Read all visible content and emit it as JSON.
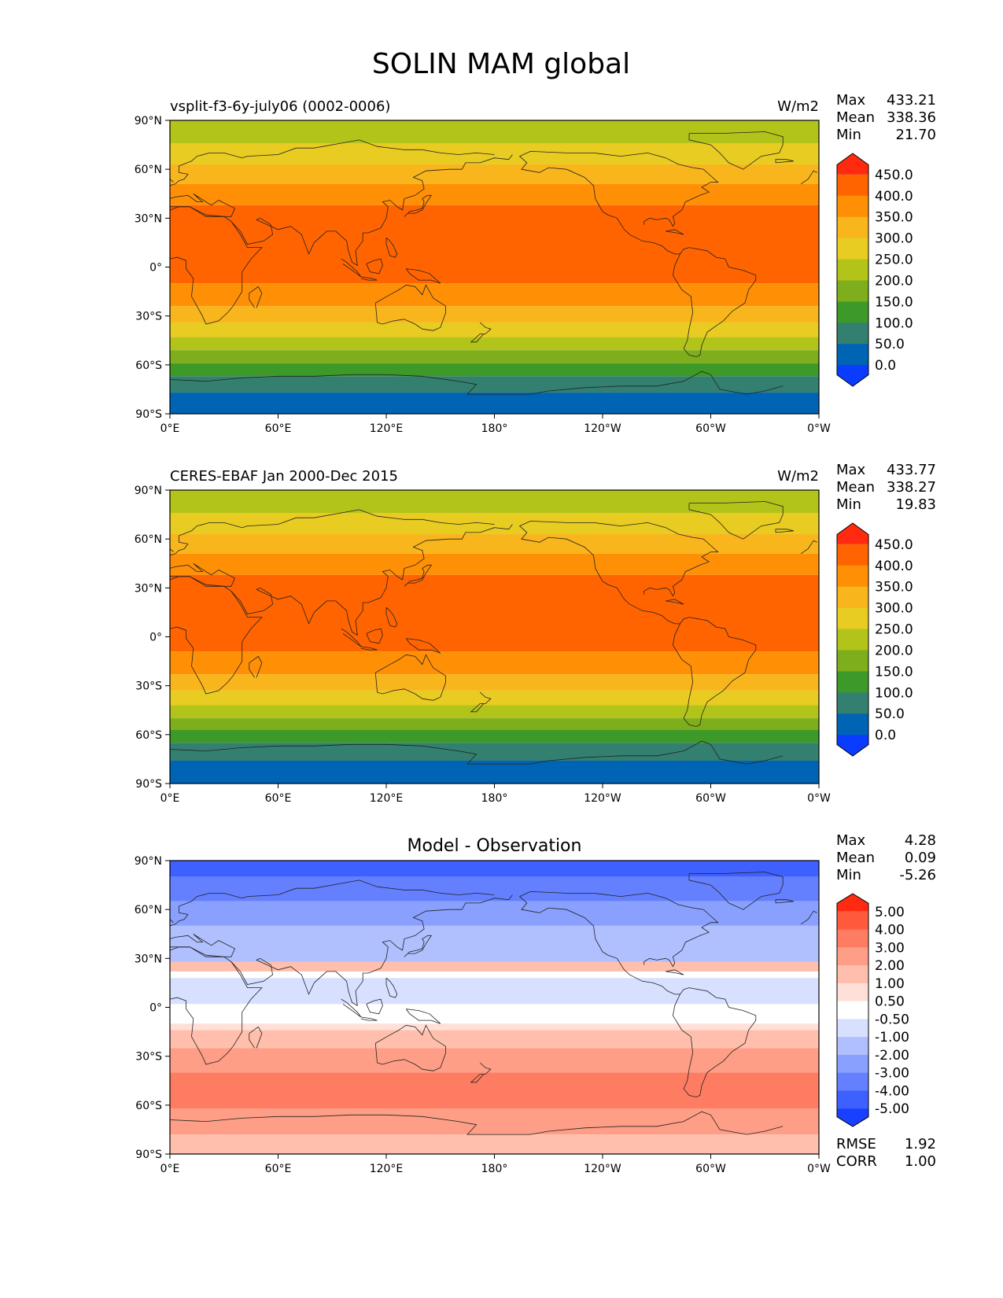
{
  "figure": {
    "title": "SOLIN MAM global"
  },
  "axes": {
    "lat_ticks": [
      "90°N",
      "60°N",
      "30°N",
      "0°",
      "30°S",
      "60°S",
      "90°S"
    ],
    "lon_ticks": [
      "0°E",
      "60°E",
      "120°E",
      "180°",
      "120°W",
      "60°W",
      "0°W"
    ]
  },
  "panels": [
    {
      "id": "model",
      "left_title": "vsplit-f3-6y-july06 (0002-0006)",
      "center_title": "",
      "units": "W/m2",
      "stats": [
        {
          "label": "Max",
          "value": "433.21"
        },
        {
          "label": "Mean",
          "value": "338.36"
        },
        {
          "label": "Min",
          "value": "21.70"
        }
      ],
      "extra_stats": [],
      "colorbar": {
        "labels": [
          "450.0",
          "400.0",
          "350.0",
          "300.0",
          "250.0",
          "200.0",
          "150.0",
          "100.0",
          "50.0",
          "0.0"
        ],
        "colors_top_to_bottom": [
          "#ff2a10",
          "#ff6400",
          "#ff9005",
          "#f9b51c",
          "#e8cc22",
          "#b2c41a",
          "#7eae1c",
          "#3e9a28",
          "#338070",
          "#0064b4",
          "#0a3cff"
        ]
      },
      "field_bands_north_to_south": [
        {
          "lat_top": 90,
          "lat_bottom": 76,
          "color": "#b2c41a"
        },
        {
          "lat_top": 76,
          "lat_bottom": 63,
          "color": "#e8cc22"
        },
        {
          "lat_top": 63,
          "lat_bottom": 51,
          "color": "#f9b51c"
        },
        {
          "lat_top": 51,
          "lat_bottom": 38,
          "color": "#ff9005"
        },
        {
          "lat_top": 38,
          "lat_bottom": -10,
          "color": "#ff6400"
        },
        {
          "lat_top": -10,
          "lat_bottom": -24,
          "color": "#ff9005"
        },
        {
          "lat_top": -24,
          "lat_bottom": -34,
          "color": "#f9b51c"
        },
        {
          "lat_top": -34,
          "lat_bottom": -43,
          "color": "#e8cc22"
        },
        {
          "lat_top": -43,
          "lat_bottom": -51,
          "color": "#b2c41a"
        },
        {
          "lat_top": -51,
          "lat_bottom": -59,
          "color": "#7eae1c"
        },
        {
          "lat_top": -59,
          "lat_bottom": -67,
          "color": "#3e9a28"
        },
        {
          "lat_top": -67,
          "lat_bottom": -77,
          "color": "#338070"
        },
        {
          "lat_top": -77,
          "lat_bottom": -90,
          "color": "#0064b4"
        }
      ]
    },
    {
      "id": "obs",
      "left_title": "CERES-EBAF Jan 2000-Dec 2015",
      "center_title": "",
      "units": "W/m2",
      "stats": [
        {
          "label": "Max",
          "value": "433.77"
        },
        {
          "label": "Mean",
          "value": "338.27"
        },
        {
          "label": "Min",
          "value": "19.83"
        }
      ],
      "extra_stats": [],
      "colorbar": {
        "labels": [
          "450.0",
          "400.0",
          "350.0",
          "300.0",
          "250.0",
          "200.0",
          "150.0",
          "100.0",
          "50.0",
          "0.0"
        ],
        "colors_top_to_bottom": [
          "#ff2a10",
          "#ff6400",
          "#ff9005",
          "#f9b51c",
          "#e8cc22",
          "#b2c41a",
          "#7eae1c",
          "#3e9a28",
          "#338070",
          "#0064b4",
          "#0a3cff"
        ]
      },
      "field_bands_north_to_south": [
        {
          "lat_top": 90,
          "lat_bottom": 76,
          "color": "#b2c41a"
        },
        {
          "lat_top": 76,
          "lat_bottom": 63,
          "color": "#e8cc22"
        },
        {
          "lat_top": 63,
          "lat_bottom": 51,
          "color": "#f9b51c"
        },
        {
          "lat_top": 51,
          "lat_bottom": 38,
          "color": "#ff9005"
        },
        {
          "lat_top": 38,
          "lat_bottom": -9,
          "color": "#ff6400"
        },
        {
          "lat_top": -9,
          "lat_bottom": -23,
          "color": "#ff9005"
        },
        {
          "lat_top": -23,
          "lat_bottom": -33,
          "color": "#f9b51c"
        },
        {
          "lat_top": -33,
          "lat_bottom": -42,
          "color": "#e8cc22"
        },
        {
          "lat_top": -42,
          "lat_bottom": -50,
          "color": "#b2c41a"
        },
        {
          "lat_top": -50,
          "lat_bottom": -57,
          "color": "#7eae1c"
        },
        {
          "lat_top": -57,
          "lat_bottom": -65,
          "color": "#3e9a28"
        },
        {
          "lat_top": -65,
          "lat_bottom": -76,
          "color": "#338070"
        },
        {
          "lat_top": -76,
          "lat_bottom": -90,
          "color": "#0064b4"
        }
      ]
    },
    {
      "id": "diff",
      "left_title": "",
      "center_title": "Model - Observation",
      "units": "",
      "stats": [
        {
          "label": "Max",
          "value": "4.28"
        },
        {
          "label": "Mean",
          "value": "0.09"
        },
        {
          "label": "Min",
          "value": "-5.26"
        }
      ],
      "extra_stats": [
        {
          "label": "RMSE",
          "value": "1.92"
        },
        {
          "label": "CORR",
          "value": "1.00"
        }
      ],
      "colorbar": {
        "labels": [
          "5.00",
          "4.00",
          "3.00",
          "2.00",
          "1.00",
          "0.50",
          "-0.50",
          "-1.00",
          "-2.00",
          "-3.00",
          "-4.00",
          "-5.00"
        ],
        "colors_top_to_bottom": [
          "#ff2a10",
          "#ff5a3c",
          "#fe7c62",
          "#fe9e86",
          "#ffbfac",
          "#ffe0d8",
          "#ffffff",
          "#d8e0ff",
          "#b0c0ff",
          "#8aa0ff",
          "#6480ff",
          "#3e60ff",
          "#1a40ff"
        ]
      },
      "field_bands_north_to_south": [
        {
          "lat_top": 90,
          "lat_bottom": 80,
          "color": "#3e60ff"
        },
        {
          "lat_top": 80,
          "lat_bottom": 65,
          "color": "#6480ff"
        },
        {
          "lat_top": 65,
          "lat_bottom": 50,
          "color": "#8aa0ff"
        },
        {
          "lat_top": 50,
          "lat_bottom": 28,
          "color": "#b0c0ff"
        },
        {
          "lat_top": 28,
          "lat_bottom": 22,
          "color": "#ffbfac"
        },
        {
          "lat_top": 22,
          "lat_bottom": 18,
          "color": "#ffffff"
        },
        {
          "lat_top": 18,
          "lat_bottom": 2,
          "color": "#d8e0ff"
        },
        {
          "lat_top": 2,
          "lat_bottom": -10,
          "color": "#ffffff"
        },
        {
          "lat_top": -10,
          "lat_bottom": -14,
          "color": "#ffe0d8"
        },
        {
          "lat_top": -14,
          "lat_bottom": -25,
          "color": "#ffbfac"
        },
        {
          "lat_top": -25,
          "lat_bottom": -40,
          "color": "#fe9e86"
        },
        {
          "lat_top": -40,
          "lat_bottom": -62,
          "color": "#fe7c62"
        },
        {
          "lat_top": -62,
          "lat_bottom": -78,
          "color": "#fe9e86"
        },
        {
          "lat_top": -78,
          "lat_bottom": -90,
          "color": "#ffbfac"
        }
      ]
    }
  ]
}
